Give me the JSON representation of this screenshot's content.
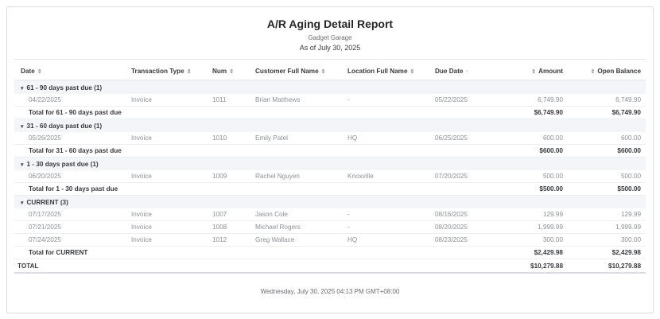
{
  "report": {
    "title": "A/R Aging Detail Report",
    "company": "Gadget Garage",
    "as_of": "As of July 30, 2025",
    "footer": "Wednesday, July 30, 2025 04:13 PM GMT+08:00"
  },
  "columns": [
    {
      "label": "Date",
      "sort": "sort-icon",
      "align": "left"
    },
    {
      "label": "Transaction Type",
      "sort": "sort-icon",
      "align": "left"
    },
    {
      "label": "Num",
      "sort": "sort-icon",
      "align": "left"
    },
    {
      "label": "Customer Full Name",
      "sort": "sort-icon",
      "align": "left"
    },
    {
      "label": "Location Full Name",
      "sort": "sort-icon",
      "align": "left"
    },
    {
      "label": "Due Date",
      "sort": "sort-ascending-icon",
      "align": "left"
    },
    {
      "label": "Amount",
      "sort": "sort-icon",
      "align": "right"
    },
    {
      "label": "Open Balance",
      "sort": "sort-icon",
      "align": "right"
    }
  ],
  "groups": [
    {
      "label": "61 - 90 days past due (1)",
      "rows": [
        [
          "04/22/2025",
          "Invoice",
          "1011",
          "Brian Matthews",
          "-",
          "05/22/2025",
          "6,749.90",
          "6,749.90"
        ]
      ],
      "total_label": "Total for 61 - 90 days past due",
      "total_amount": "$6,749.90",
      "total_balance": "$6,749.90"
    },
    {
      "label": "31 - 60 days past due (1)",
      "rows": [
        [
          "05/26/2025",
          "Invoice",
          "1010",
          "Emily Patel",
          "HQ",
          "06/25/2025",
          "600.00",
          "600.00"
        ]
      ],
      "total_label": "Total for 31 - 60 days past due",
      "total_amount": "$600.00",
      "total_balance": "$600.00"
    },
    {
      "label": "1 - 30 days past due (1)",
      "rows": [
        [
          "06/20/2025",
          "Invoice",
          "1009",
          "Rachel Nguyen",
          "Knoxville",
          "07/20/2025",
          "500.00",
          "500.00"
        ]
      ],
      "total_label": "Total for 1 - 30 days past due",
      "total_amount": "$500.00",
      "total_balance": "$500.00"
    },
    {
      "label": "CURRENT (3)",
      "rows": [
        [
          "07/17/2025",
          "Invoice",
          "1007",
          "Jason Cole",
          "-",
          "08/16/2025",
          "129.99",
          "129.99"
        ],
        [
          "07/21/2025",
          "Invoice",
          "1008",
          "Michael Rogers",
          "-",
          "08/20/2025",
          "1,999.99",
          "1,999.99"
        ],
        [
          "07/24/2025",
          "Invoice",
          "1012",
          "Greg Wallace",
          "HQ",
          "08/23/2025",
          "300.00",
          "300.00"
        ]
      ],
      "total_label": "Total for CURRENT",
      "total_amount": "$2,429.98",
      "total_balance": "$2,429.98"
    }
  ],
  "grand_total": {
    "label": "TOTAL",
    "amount": "$10,279.88",
    "balance": "$10,279.88"
  }
}
